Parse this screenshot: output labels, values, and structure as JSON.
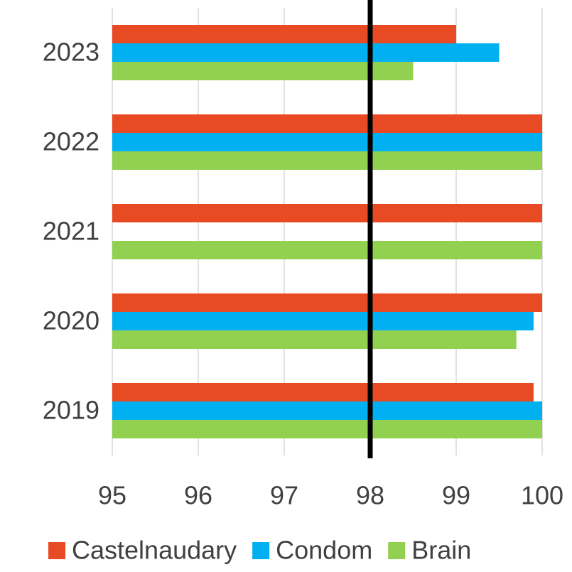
{
  "chart_data": {
    "type": "hbar",
    "categories": [
      "2023",
      "2022",
      "2021",
      "2020",
      "2019"
    ],
    "series": [
      {
        "name": "Castelnaudary",
        "color": "#e84a24",
        "values": [
          99.0,
          100,
          100,
          100,
          99.9
        ]
      },
      {
        "name": "Condom",
        "color": "#00b0f0",
        "values": [
          99.5,
          100,
          null,
          99.9,
          100
        ]
      },
      {
        "name": "Brain",
        "color": "#92d050",
        "values": [
          98.5,
          100,
          100,
          99.7,
          100
        ]
      }
    ],
    "xlim": [
      95,
      100
    ],
    "xticks": [
      95,
      96,
      97,
      98,
      99,
      100
    ],
    "grid": true,
    "reference_line": 98,
    "legend": "bottom"
  }
}
